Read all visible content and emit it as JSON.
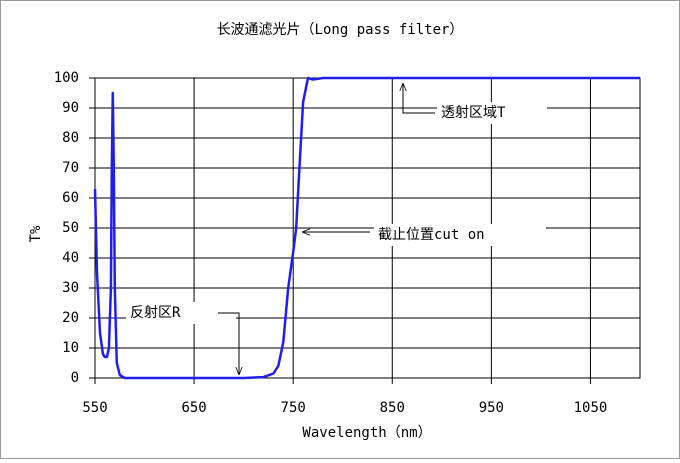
{
  "chart_data": {
    "type": "line",
    "title": "长波通滤光片（Long pass filter）",
    "x_label": "Wavelength（nm）",
    "y_label": "T%",
    "x": [
      550,
      552,
      555,
      558,
      560,
      562,
      564,
      566,
      567,
      568,
      569,
      570,
      572,
      575,
      580,
      600,
      650,
      700,
      720,
      730,
      735,
      740,
      745,
      750,
      753,
      756,
      760,
      765,
      770,
      780,
      800,
      900,
      1000,
      1100
    ],
    "values": [
      63,
      35,
      15,
      8,
      7,
      7,
      10,
      30,
      70,
      95,
      70,
      30,
      5,
      1,
      0,
      0,
      0,
      0,
      0.3,
      1.5,
      4,
      12,
      30,
      42,
      50,
      68,
      92,
      100,
      99.5,
      100,
      100,
      100,
      100,
      100
    ],
    "color": "#1f1fe6",
    "xlim": [
      550,
      1100
    ],
    "xticks": [
      550,
      650,
      750,
      850,
      950,
      1050
    ],
    "ylim": [
      0,
      100
    ],
    "yticks": [
      0,
      10,
      20,
      30,
      40,
      50,
      60,
      70,
      80,
      90,
      100
    ],
    "grid": true,
    "annotations": [
      "透射区域T",
      "截止位置cut on",
      "反射区R"
    ]
  }
}
